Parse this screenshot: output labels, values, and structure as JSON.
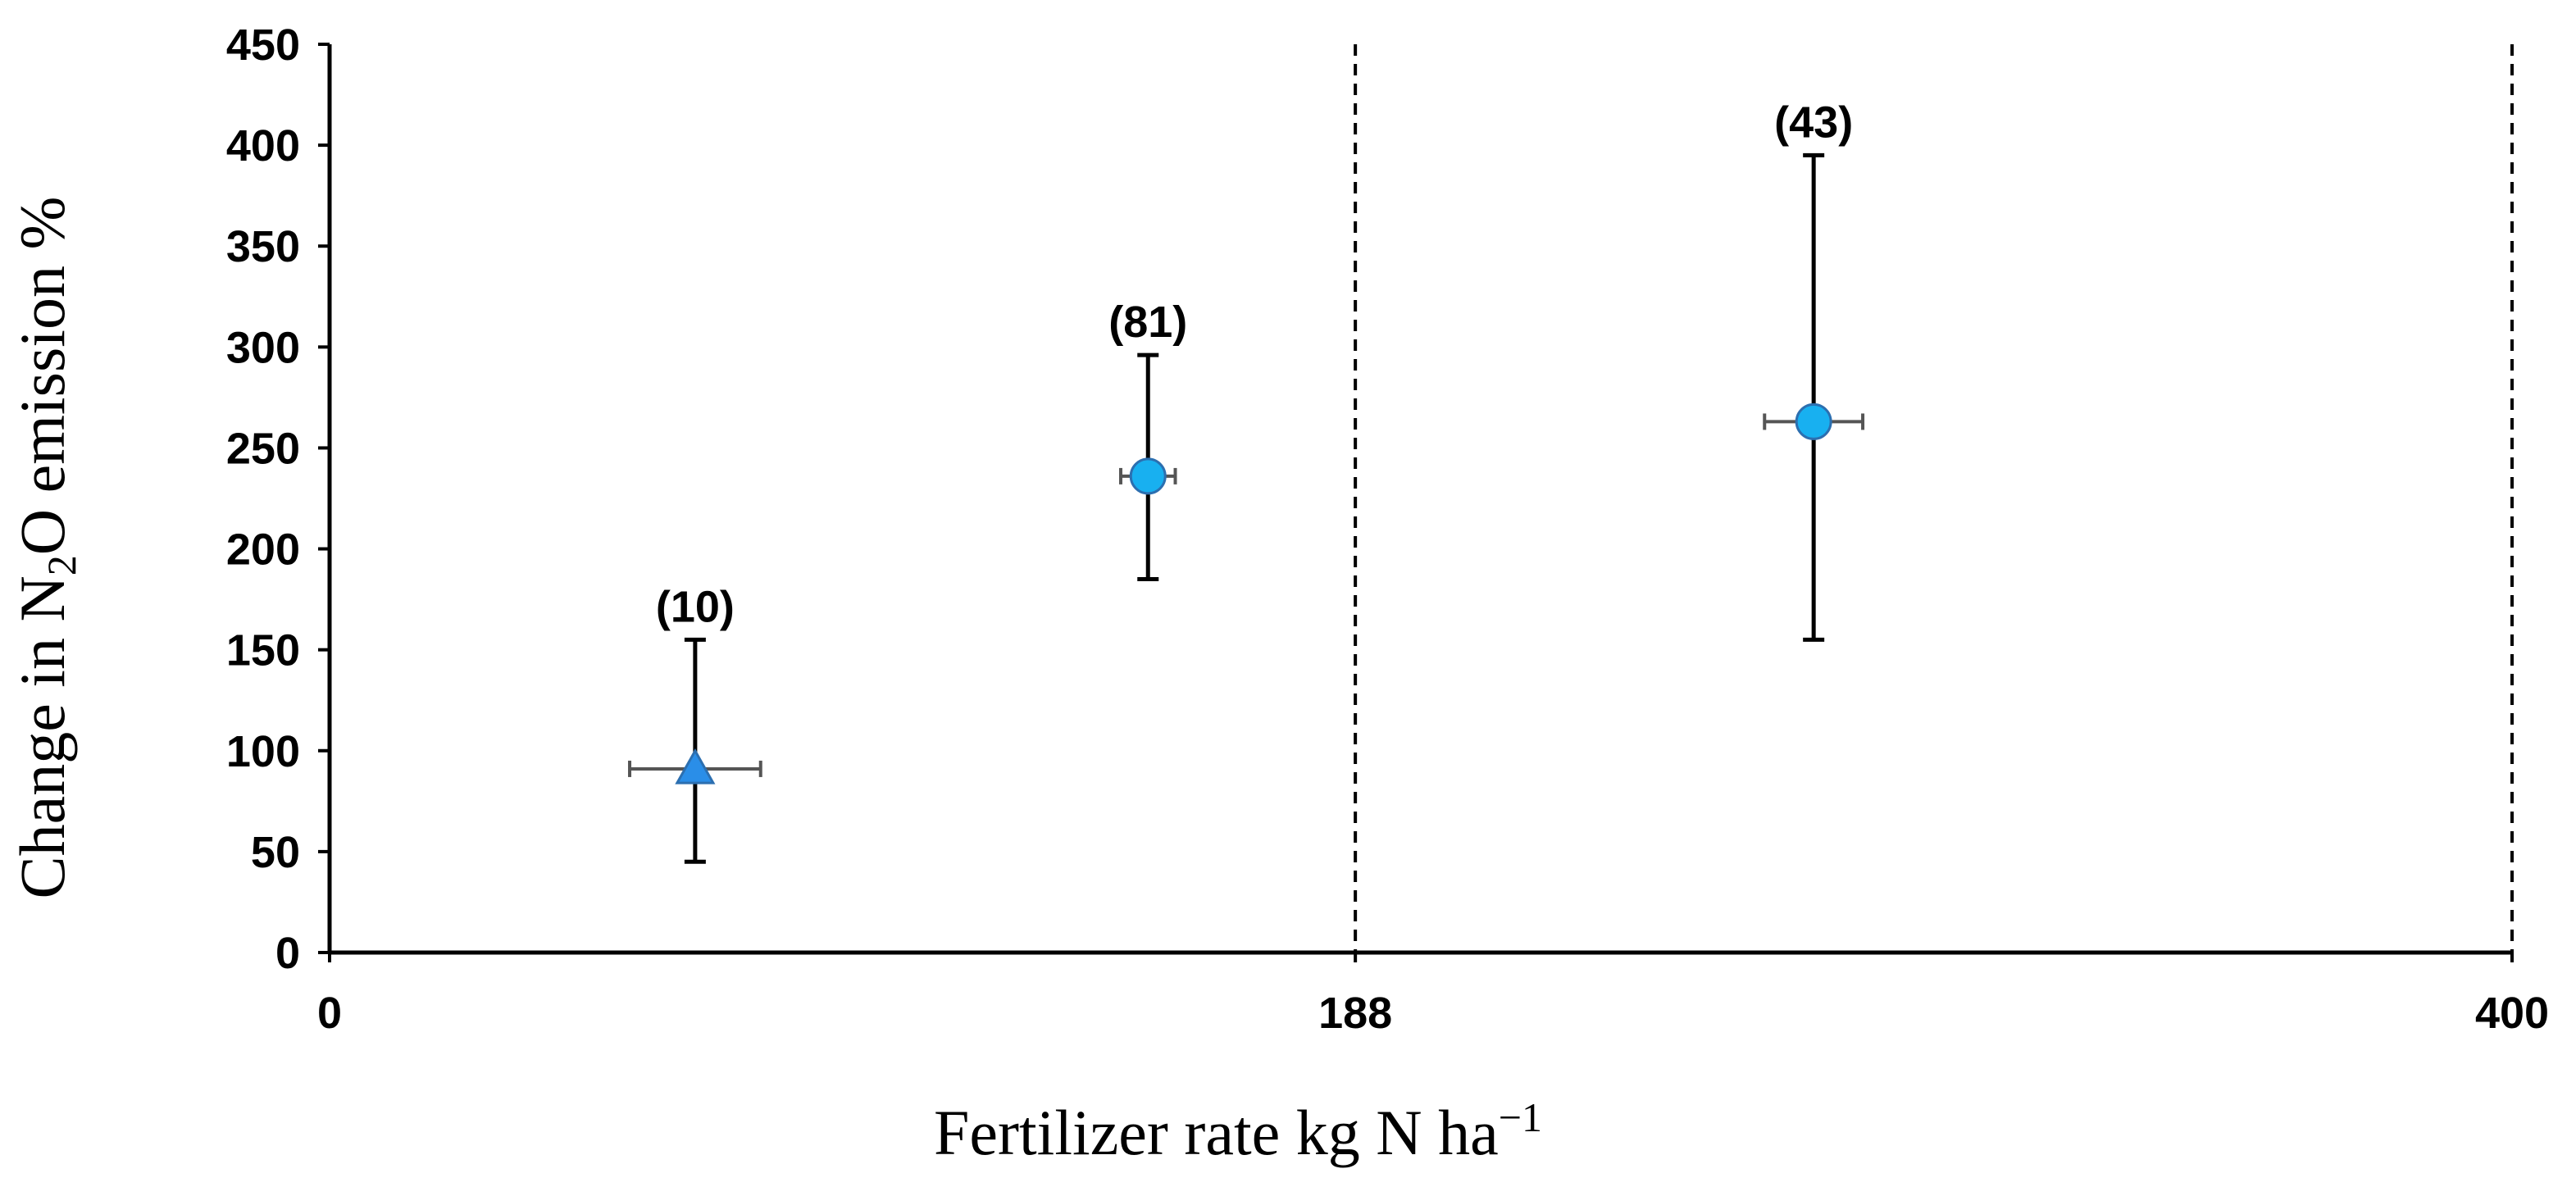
{
  "chart_data": {
    "type": "scatter",
    "title": "",
    "xlabel": {
      "pre": "Fertilizer rate kg N ha",
      "sup": "−1"
    },
    "ylabel": {
      "pre": "Change in N",
      "sub": "2",
      "post": "O emission %"
    },
    "xlim": [
      0,
      400
    ],
    "ylim": [
      0,
      450
    ],
    "x_ticks": [
      {
        "value": 0,
        "label": "0"
      },
      {
        "value": 188,
        "label": "188"
      },
      {
        "value": 400,
        "label": "400"
      }
    ],
    "y_ticks": [
      {
        "value": 0,
        "label": "0"
      },
      {
        "value": 50,
        "label": "50"
      },
      {
        "value": 100,
        "label": "100"
      },
      {
        "value": 150,
        "label": "150"
      },
      {
        "value": 200,
        "label": "200"
      },
      {
        "value": 250,
        "label": "250"
      },
      {
        "value": 300,
        "label": "300"
      },
      {
        "value": 350,
        "label": "350"
      },
      {
        "value": 400,
        "label": "400"
      },
      {
        "value": 450,
        "label": "450"
      }
    ],
    "vertical_reference_lines": [
      188,
      400
    ],
    "grid": false,
    "points": [
      {
        "x": 67,
        "y": 91,
        "y_low": 45,
        "y_high": 155,
        "x_low": 55,
        "x_high": 79,
        "marker": "triangle",
        "label": "(10)"
      },
      {
        "x": 150,
        "y": 236,
        "y_low": 185,
        "y_high": 296,
        "x_low": 145,
        "x_high": 155,
        "marker": "circle",
        "label": "(81)"
      },
      {
        "x": 272,
        "y": 263,
        "y_low": 155,
        "y_high": 395,
        "x_low": 263,
        "x_high": 281,
        "marker": "circle",
        "label": "(43)"
      }
    ],
    "colors": {
      "marker_fill": "#18b0f0",
      "triangle_fill": "#2a8ee8",
      "marker_edge": "#2c6fb0",
      "y_error": "#000000",
      "x_error": "#555555",
      "axis": "#000000"
    }
  }
}
